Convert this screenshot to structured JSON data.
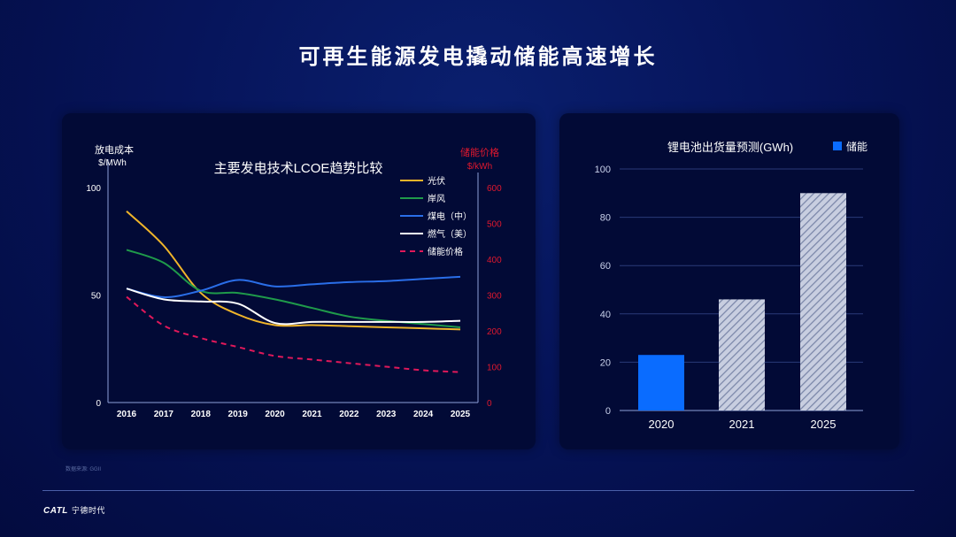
{
  "title": "可再生能源发电撬动储能高速增长",
  "source": "数据来源: GGII",
  "logo": {
    "brand": "CATL",
    "name": "宁德时代"
  },
  "colors": {
    "solar": "#f0b52a",
    "wind": "#1f9a4a",
    "coal": "#2a6ee8",
    "gas": "#ffffff",
    "storage": "#e0185a",
    "bar": "#0a6cff",
    "right_axis": "#e0182e"
  },
  "chart_data": [
    {
      "type": "line",
      "title": "主要发电技术LCOE趋势比较",
      "ylabel": "放电成本",
      "yunit": "$/MWh",
      "y2label": "储能价格",
      "y2unit": "$/kWh",
      "ylim": [
        0,
        100
      ],
      "yticks": [
        "0",
        "50",
        "100"
      ],
      "y2lim": [
        0,
        600
      ],
      "y2ticks": [
        "0",
        "100",
        "200",
        "300",
        "400",
        "500",
        "600"
      ],
      "categories": [
        "2016",
        "2017",
        "2018",
        "2019",
        "2020",
        "2021",
        "2022",
        "2023",
        "2024",
        "2025"
      ],
      "legend": "top-right",
      "series": [
        {
          "name": "光伏",
          "axis": "left",
          "style": "solid",
          "color": "#f0b52a",
          "values": [
            89,
            73,
            51,
            41,
            36,
            36,
            35.5,
            35,
            34.5,
            34
          ]
        },
        {
          "name": "岸风",
          "axis": "left",
          "style": "solid",
          "color": "#1f9a4a",
          "values": [
            71,
            65,
            52,
            51,
            48,
            44,
            40,
            38,
            36.5,
            35
          ]
        },
        {
          "name": "煤电（中）",
          "axis": "left",
          "style": "solid",
          "color": "#2a6ee8",
          "values": [
            53,
            49,
            52,
            57,
            54,
            55,
            56,
            56.5,
            57.5,
            58.5
          ]
        },
        {
          "name": "燃气（美）",
          "axis": "left",
          "style": "solid",
          "color": "#ffffff",
          "values": [
            53,
            48,
            47,
            46,
            37,
            37.5,
            37.5,
            37.5,
            37.5,
            38
          ]
        },
        {
          "name": "储能价格",
          "axis": "right",
          "style": "dashed",
          "color": "#e0185a",
          "values": [
            295,
            215,
            180,
            155,
            130,
            120,
            110,
            100,
            90,
            85
          ]
        }
      ]
    },
    {
      "type": "bar",
      "title": "锂电池出货量预测(GWh)",
      "legend_label": "储能",
      "categories": [
        "2020",
        "2021",
        "2025"
      ],
      "values": [
        23,
        46,
        90
      ],
      "bar_styles": [
        "solid",
        "hatched",
        "hatched"
      ],
      "ylim": [
        0,
        100
      ],
      "yticks": [
        "0",
        "20",
        "40",
        "60",
        "80",
        "100"
      ],
      "grid": true
    }
  ]
}
